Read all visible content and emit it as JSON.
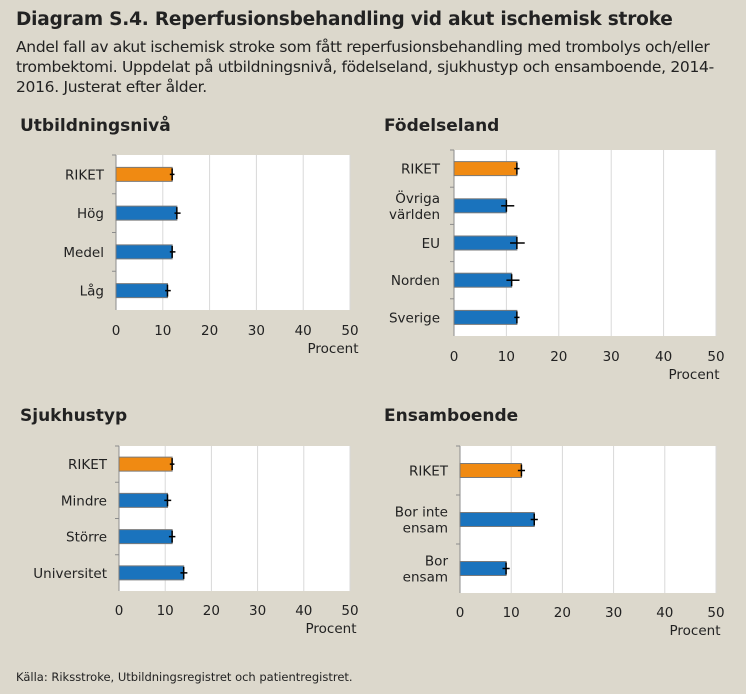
{
  "header": {
    "title": "Diagram S.4. Reperfusionsbehandling vid akut ischemisk stroke",
    "subtitle": "Andel fall av akut ischemisk stroke som fått reperfusionsbehandling med trombolys och/eller trombektomi. Uppdelat på utbildningsnivå, födelseland, sjukhustyp och ensamboende, 2014-2016. Justerat efter ålder."
  },
  "source": "Källa: Riksstroke, Utbildningsregistret och patientregistret.",
  "colors": {
    "highlight": "#f08a12",
    "bar": "#1a73bd",
    "errorbar": "#000000",
    "plot_bg": "#ffffff",
    "page_bg": "#dcd8cc",
    "grid": "#d9d9d9"
  },
  "chart_data": [
    {
      "type": "bar",
      "orientation": "horizontal",
      "title": "Utbildningsnivå",
      "categories": [
        "RIKET",
        "Hög",
        "Medel",
        "Låg"
      ],
      "values": [
        12,
        13,
        12,
        11
      ],
      "error": [
        [
          11.5,
          12.5
        ],
        [
          12.5,
          13.8
        ],
        [
          11.5,
          12.7
        ],
        [
          10.5,
          11.7
        ]
      ],
      "highlight": [
        0
      ],
      "xlabel": "Procent",
      "xlim": [
        0,
        50
      ],
      "xticks": [
        "0",
        "10",
        "20",
        "30",
        "40",
        "50"
      ],
      "grid": true
    },
    {
      "type": "bar",
      "orientation": "horizontal",
      "title": "Födelseland",
      "categories": [
        "RIKET",
        "Övriga världen",
        "EU",
        "Norden",
        "Sverige"
      ],
      "values": [
        12,
        10,
        12,
        11,
        12
      ],
      "error": [
        [
          11.5,
          12.5
        ],
        [
          9,
          11.5
        ],
        [
          10.7,
          13.5
        ],
        [
          10,
          12.5
        ],
        [
          11.5,
          12.5
        ]
      ],
      "highlight": [
        0
      ],
      "xlabel": "Procent",
      "xlim": [
        0,
        50
      ],
      "xticks": [
        "0",
        "10",
        "20",
        "30",
        "40",
        "50"
      ],
      "grid": true
    },
    {
      "type": "bar",
      "orientation": "horizontal",
      "title": "Sjukhustyp",
      "categories": [
        "RIKET",
        "Mindre",
        "Större",
        "Universitet"
      ],
      "values": [
        11.5,
        10.5,
        11.5,
        14
      ],
      "error": [
        [
          11,
          12
        ],
        [
          9.8,
          11.3
        ],
        [
          10.8,
          12.2
        ],
        [
          13.3,
          14.8
        ]
      ],
      "highlight": [
        0
      ],
      "xlabel": "Procent",
      "xlim": [
        0,
        50
      ],
      "xticks": [
        "0",
        "10",
        "20",
        "30",
        "40",
        "50"
      ],
      "grid": true
    },
    {
      "type": "bar",
      "orientation": "horizontal",
      "title": "Ensamboende",
      "categories": [
        "RIKET",
        "Bor inte ensam",
        "Bor ensam"
      ],
      "values": [
        12,
        14.5,
        9
      ],
      "error": [
        [
          11.3,
          12.7
        ],
        [
          13.8,
          15.2
        ],
        [
          8.3,
          9.7
        ]
      ],
      "highlight": [
        0
      ],
      "xlabel": "Procent",
      "xlim": [
        0,
        50
      ],
      "xticks": [
        "0",
        "10",
        "20",
        "30",
        "40",
        "50"
      ],
      "grid": true
    }
  ]
}
